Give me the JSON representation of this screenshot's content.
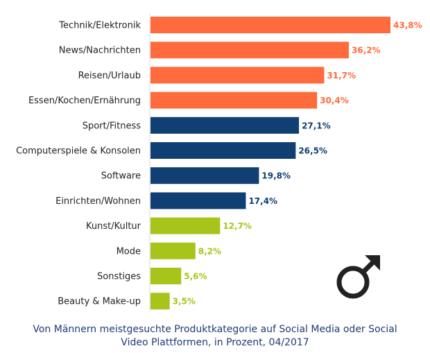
{
  "chart_data": {
    "type": "bar",
    "orientation": "horizontal",
    "categories": [
      "Technik/Elektronik",
      "News/Nachrichten",
      "Reisen/Urlaub",
      "Essen/Kochen/Ernährung",
      "Sport/Fitness",
      "Computerspiele & Konsolen",
      "Software",
      "Einrichten/Wohnen",
      "Kunst/Kultur",
      "Mode",
      "Sonstiges",
      "Beauty & Make-up"
    ],
    "values": [
      43.8,
      36.2,
      31.7,
      30.4,
      27.1,
      26.5,
      19.8,
      17.4,
      12.7,
      8.2,
      5.6,
      3.5
    ],
    "value_labels": [
      "43,8%",
      "36,2%",
      "31,7%",
      "30,4%",
      "27,1%",
      "26,5%",
      "19,8%",
      "17,4%",
      "12,7%",
      "8,2%",
      "5,6%",
      "3,5%"
    ],
    "colors": [
      "#ff6b3d",
      "#ff6b3d",
      "#ff6b3d",
      "#ff6b3d",
      "#0f3f73",
      "#0f3f73",
      "#0f3f73",
      "#0f3f73",
      "#a7c41a",
      "#a7c41a",
      "#a7c41a",
      "#a7c41a"
    ],
    "xlim": [
      0,
      43.8
    ],
    "grid": false,
    "caption_line1": "Von Männern meistgesuchte Produktkategorie auf Social Media oder Social",
    "caption_line2": "Video Plattformen, in Prozent, 04/2017"
  },
  "icon": "male-symbol-icon"
}
